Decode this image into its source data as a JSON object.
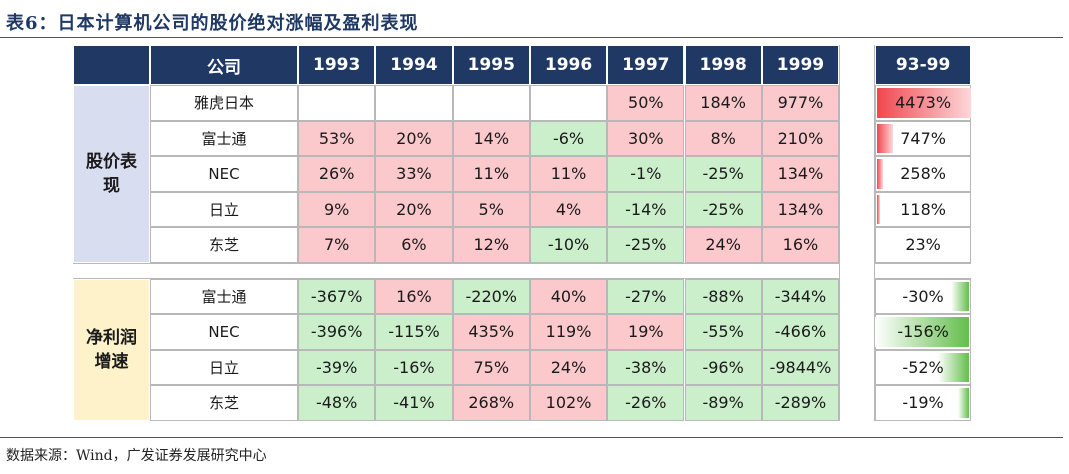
{
  "title": "表6：日本计算机公司的股价绝对涨幅及盈利表现",
  "source": "数据来源：Wind，广发证券发展研究中心",
  "header": {
    "company": "公司",
    "years": [
      "1993",
      "1994",
      "1995",
      "1996",
      "1997",
      "1998",
      "1999"
    ],
    "total": "93-99"
  },
  "section_stock": {
    "label_line1": "股价表",
    "label_line2": "现",
    "rows": [
      {
        "name": "雅虎日本",
        "values": [
          "",
          "",
          "",
          "",
          "50%",
          "184%",
          "977%"
        ],
        "total": "4473%",
        "total_bar": 1.0
      },
      {
        "name": "富士通",
        "values": [
          "53%",
          "20%",
          "14%",
          "-6%",
          "30%",
          "8%",
          "210%"
        ],
        "total": "747%",
        "total_bar": 0.167
      },
      {
        "name": "NEC",
        "values": [
          "26%",
          "33%",
          "11%",
          "11%",
          "-1%",
          "-25%",
          "134%"
        ],
        "total": "258%",
        "total_bar": 0.058
      },
      {
        "name": "日立",
        "values": [
          "9%",
          "20%",
          "5%",
          "4%",
          "-14%",
          "-25%",
          "134%"
        ],
        "total": "118%",
        "total_bar": 0.026
      },
      {
        "name": "东芝",
        "values": [
          "7%",
          "6%",
          "12%",
          "-10%",
          "-25%",
          "24%",
          "16%"
        ],
        "total": "23%",
        "total_bar": 0.0
      }
    ]
  },
  "section_profit": {
    "label_line1": "净利润",
    "label_line2": "增速",
    "rows": [
      {
        "name": "富士通",
        "values": [
          "-367%",
          "16%",
          "-220%",
          "40%",
          "-27%",
          "-88%",
          "-344%"
        ],
        "total": "-30%",
        "total_bar": 0.19
      },
      {
        "name": "NEC",
        "values": [
          "-396%",
          "-115%",
          "435%",
          "119%",
          "19%",
          "-55%",
          "-466%"
        ],
        "total": "-156%",
        "total_bar": 1.0
      },
      {
        "name": "日立",
        "values": [
          "-39%",
          "-16%",
          "75%",
          "24%",
          "-38%",
          "-96%",
          "-9844%"
        ],
        "total": "-52%",
        "total_bar": 0.33
      },
      {
        "name": "东芝",
        "values": [
          "-48%",
          "-41%",
          "268%",
          "102%",
          "-26%",
          "-89%",
          "-289%"
        ],
        "total": "-19%",
        "total_bar": 0.12
      }
    ]
  },
  "colors": {
    "header": "#1f3864",
    "positive": "#fbc8cc",
    "negative": "#cbefcb",
    "stock_section": "#d9ddf0",
    "profit_section": "#fef2cb"
  }
}
